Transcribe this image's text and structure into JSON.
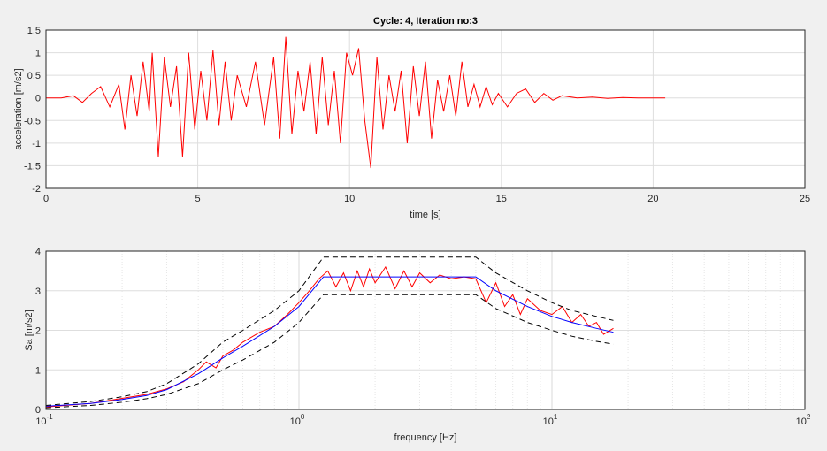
{
  "figure": {
    "background": "#f0f0f0"
  },
  "chart_data": [
    {
      "type": "line",
      "title": "Cycle: 4,    Iteration no:3",
      "xlabel": "time [s]",
      "ylabel": "acceleration [m/s2]",
      "xlim": [
        0,
        25
      ],
      "ylim": [
        -2,
        1.5
      ],
      "grid": true,
      "x_ticks": [
        "0",
        "5",
        "10",
        "15",
        "20",
        "25"
      ],
      "y_ticks": [
        "-2",
        "-1.5",
        "-1",
        "-0.5",
        "0",
        "0.5",
        "1",
        "1.5"
      ],
      "series": [
        {
          "color": "#ff0000",
          "x": [
            0,
            0.5,
            0.9,
            1.2,
            1.5,
            1.8,
            2.1,
            2.4,
            2.6,
            2.8,
            3.0,
            3.2,
            3.4,
            3.5,
            3.7,
            3.9,
            4.1,
            4.3,
            4.5,
            4.7,
            4.9,
            5.1,
            5.3,
            5.5,
            5.7,
            5.9,
            6.1,
            6.3,
            6.6,
            6.9,
            7.2,
            7.5,
            7.7,
            7.9,
            8.1,
            8.3,
            8.5,
            8.7,
            8.9,
            9.1,
            9.3,
            9.5,
            9.7,
            9.9,
            10.1,
            10.3,
            10.5,
            10.7,
            10.9,
            11.1,
            11.3,
            11.5,
            11.7,
            11.9,
            12.1,
            12.3,
            12.5,
            12.7,
            12.9,
            13.1,
            13.3,
            13.5,
            13.7,
            13.9,
            14.1,
            14.3,
            14.5,
            14.7,
            14.9,
            15.2,
            15.5,
            15.8,
            16.1,
            16.4,
            16.7,
            17.0,
            17.5,
            18.0,
            18.5,
            19.0,
            19.5,
            20.0,
            20.4
          ],
          "y": [
            0,
            0,
            0.05,
            -0.1,
            0.1,
            0.25,
            -0.2,
            0.3,
            -0.7,
            0.5,
            -0.4,
            0.8,
            -0.3,
            1.0,
            -1.3,
            0.9,
            -0.2,
            0.7,
            -1.3,
            1.0,
            -0.7,
            0.6,
            -0.5,
            1.05,
            -0.6,
            0.8,
            -0.5,
            0.5,
            -0.2,
            0.8,
            -0.6,
            0.9,
            -0.9,
            1.35,
            -0.8,
            0.6,
            -0.3,
            0.8,
            -0.8,
            0.9,
            -0.6,
            0.6,
            -1.0,
            1.0,
            0.5,
            1.1,
            -0.5,
            -1.55,
            0.9,
            -0.7,
            0.5,
            -0.3,
            0.6,
            -1.0,
            0.7,
            -0.4,
            0.8,
            -0.9,
            0.4,
            -0.3,
            0.5,
            -0.4,
            0.8,
            -0.2,
            0.3,
            -0.2,
            0.25,
            -0.15,
            0.1,
            -0.2,
            0.1,
            0.2,
            -0.1,
            0.1,
            -0.05,
            0.05,
            0.0,
            0.02,
            -0.01,
            0.01,
            0.0,
            0.0,
            0.0
          ]
        }
      ]
    },
    {
      "type": "line",
      "xlabel": "frequency [Hz]",
      "ylabel": "Sa [m/s2]",
      "xscale": "log",
      "xlim": [
        0.1,
        100
      ],
      "ylim": [
        0,
        4
      ],
      "grid": true,
      "x_ticks": [
        {
          "base": "10",
          "exp": "-1"
        },
        {
          "base": "10",
          "exp": "0"
        },
        {
          "base": "10",
          "exp": "1"
        },
        {
          "base": "10",
          "exp": "2"
        }
      ],
      "y_ticks": [
        "0",
        "1",
        "2",
        "3",
        "4"
      ],
      "series": [
        {
          "color": "#ff0000",
          "dash": false,
          "x": [
            0.1,
            0.15,
            0.2,
            0.25,
            0.3,
            0.35,
            0.4,
            0.43,
            0.47,
            0.5,
            0.55,
            0.6,
            0.7,
            0.8,
            0.9,
            1.0,
            1.1,
            1.2,
            1.3,
            1.4,
            1.5,
            1.6,
            1.7,
            1.8,
            1.9,
            2.0,
            2.2,
            2.4,
            2.6,
            2.8,
            3.0,
            3.3,
            3.6,
            4.0,
            4.5,
            5.0,
            5.5,
            6.0,
            6.5,
            7.0,
            7.5,
            8.0,
            9.0,
            10.0,
            11.0,
            12.0,
            13.0,
            14.0,
            15.0,
            16.0,
            17.5
          ],
          "y": [
            0.06,
            0.15,
            0.28,
            0.38,
            0.52,
            0.7,
            1.0,
            1.2,
            1.05,
            1.35,
            1.5,
            1.7,
            1.95,
            2.1,
            2.4,
            2.7,
            3.0,
            3.3,
            3.5,
            3.1,
            3.45,
            3.0,
            3.5,
            3.1,
            3.55,
            3.2,
            3.6,
            3.05,
            3.5,
            3.1,
            3.45,
            3.2,
            3.4,
            3.3,
            3.35,
            3.3,
            2.7,
            3.2,
            2.6,
            2.9,
            2.4,
            2.8,
            2.5,
            2.4,
            2.6,
            2.2,
            2.4,
            2.1,
            2.2,
            1.9,
            2.05
          ]
        },
        {
          "color": "#0000ff",
          "dash": false,
          "x": [
            0.1,
            0.15,
            0.2,
            0.25,
            0.3,
            0.4,
            0.5,
            0.6,
            0.8,
            1.0,
            1.25,
            5.0,
            6.0,
            8.0,
            10.0,
            12.0,
            15.0,
            17.5
          ],
          "y": [
            0.08,
            0.15,
            0.25,
            0.35,
            0.5,
            0.9,
            1.3,
            1.6,
            2.1,
            2.6,
            3.35,
            3.35,
            3.0,
            2.6,
            2.35,
            2.2,
            2.05,
            1.95
          ]
        },
        {
          "color": "#000000",
          "dash": true,
          "x": [
            0.1,
            0.15,
            0.2,
            0.25,
            0.3,
            0.4,
            0.5,
            0.6,
            0.8,
            1.0,
            1.25,
            5.0,
            6.0,
            8.0,
            10.0,
            12.0,
            15.0,
            17.5
          ],
          "y": [
            0.1,
            0.2,
            0.32,
            0.45,
            0.65,
            1.15,
            1.7,
            2.0,
            2.5,
            3.0,
            3.85,
            3.85,
            3.45,
            3.0,
            2.7,
            2.5,
            2.35,
            2.25
          ]
        },
        {
          "color": "#000000",
          "dash": true,
          "x": [
            0.1,
            0.15,
            0.2,
            0.25,
            0.3,
            0.4,
            0.5,
            0.6,
            0.8,
            1.0,
            1.25,
            5.0,
            6.0,
            8.0,
            10.0,
            12.0,
            15.0,
            17.5
          ],
          "y": [
            0.04,
            0.1,
            0.18,
            0.27,
            0.38,
            0.65,
            1.0,
            1.25,
            1.7,
            2.2,
            2.9,
            2.9,
            2.55,
            2.2,
            2.0,
            1.85,
            1.72,
            1.65
          ]
        }
      ]
    }
  ]
}
